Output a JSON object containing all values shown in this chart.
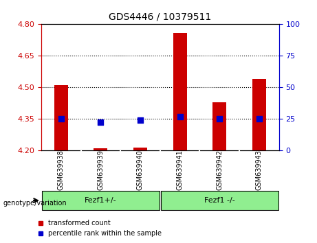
{
  "title": "GDS4446 / 10379511",
  "samples": [
    "GSM639938",
    "GSM639939",
    "GSM639940",
    "GSM639941",
    "GSM639942",
    "GSM639943"
  ],
  "red_values": [
    4.51,
    4.21,
    4.215,
    4.76,
    4.43,
    4.54
  ],
  "blue_values": [
    4.35,
    4.335,
    4.345,
    4.36,
    4.35,
    4.353
  ],
  "ylim_left": [
    4.2,
    4.8
  ],
  "ylim_right": [
    0,
    100
  ],
  "yticks_left": [
    4.2,
    4.35,
    4.5,
    4.65,
    4.8
  ],
  "yticks_right": [
    0,
    25,
    50,
    75,
    100
  ],
  "hlines": [
    4.35,
    4.5,
    4.65
  ],
  "groups": [
    {
      "label": "Fezf1+/-",
      "samples": [
        0,
        1,
        2
      ],
      "color": "#90EE90"
    },
    {
      "label": "Fezf1 -/-",
      "samples": [
        3,
        4,
        5
      ],
      "color": "#90EE90"
    }
  ],
  "group_label": "genotype/variation",
  "bar_color": "#CC0000",
  "dot_color": "#0000CC",
  "bar_width": 0.35,
  "dot_size": 40,
  "legend_items": [
    "transformed count",
    "percentile rank within the sample"
  ],
  "bg_color": "#FFFFFF",
  "axis_label_color_left": "#CC0000",
  "axis_label_color_right": "#0000CC",
  "grid_color": "#000000",
  "xticklabel_bg": "#C0C0C0"
}
